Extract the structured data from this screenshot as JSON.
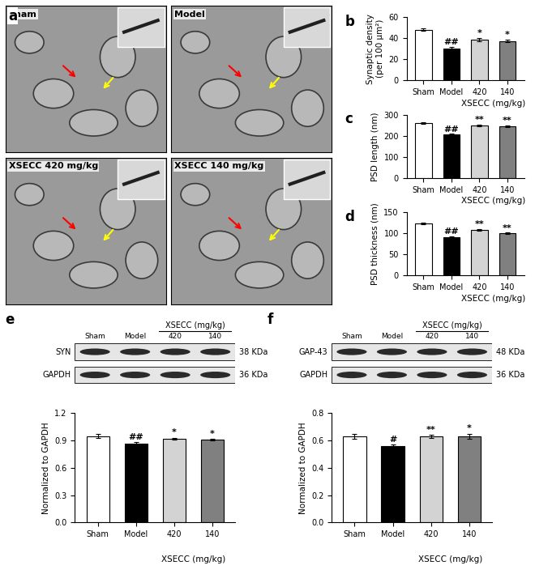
{
  "micrographs": {
    "panel": "a",
    "labels": [
      "Sham",
      "Model",
      "XSECC 420 mg/kg",
      "XSECC 140 mg/kg"
    ]
  },
  "blots": [
    {
      "panel": "e",
      "header": "XSECC (mg/kg)",
      "lanes": [
        "Sham",
        "Model",
        "420",
        "140"
      ],
      "rows": [
        {
          "protein": "SYN",
          "size": "38 KDa"
        },
        {
          "protein": "GAPDH",
          "size": "36 KDa"
        }
      ]
    },
    {
      "panel": "f",
      "header": "XSECC (mg/kg)",
      "lanes": [
        "Sham",
        "Model",
        "420",
        "140"
      ],
      "rows": [
        {
          "protein": "GAP-43",
          "size": "48 KDa"
        },
        {
          "protein": "GAPDH",
          "size": "36 KDa"
        }
      ]
    }
  ],
  "chart_data": [
    {
      "panel": "b",
      "type": "bar",
      "y_label": "Synaptic density\n(per 100 μm²)",
      "x_label": "XSECC (mg/kg)",
      "categories": [
        "Sham",
        "Model",
        "420",
        "140"
      ],
      "values": [
        48,
        30,
        38.5,
        37.5
      ],
      "errors": [
        1.2,
        2,
        1.5,
        1.5
      ],
      "significance": [
        null,
        "##",
        "*",
        "*"
      ],
      "colors": [
        "#ffffff",
        "#000000",
        "#d3d3d3",
        "#808080"
      ],
      "ylim": [
        0,
        60
      ],
      "yticks": [
        0,
        20,
        40,
        60
      ]
    },
    {
      "panel": "c",
      "type": "bar",
      "y_label": "PSD length (nm)",
      "x_label": "XSECC (mg/kg)",
      "categories": [
        "Sham",
        "Model",
        "420",
        "140"
      ],
      "values": [
        260,
        205,
        250,
        247
      ],
      "errors": [
        3,
        4,
        4,
        4
      ],
      "significance": [
        null,
        "##",
        "**",
        "**"
      ],
      "colors": [
        "#ffffff",
        "#000000",
        "#d3d3d3",
        "#808080"
      ],
      "ylim": [
        0,
        300
      ],
      "yticks": [
        0,
        100,
        200,
        300
      ]
    },
    {
      "panel": "d",
      "type": "bar",
      "y_label": "PSD thickness (nm)",
      "x_label": "XSECC (mg/kg)",
      "categories": [
        "Sham",
        "Model",
        "420",
        "140"
      ],
      "values": [
        123,
        91,
        109,
        100
      ],
      "errors": [
        2,
        2,
        2,
        2
      ],
      "significance": [
        null,
        "##",
        "**",
        "**"
      ],
      "colors": [
        "#ffffff",
        "#000000",
        "#d3d3d3",
        "#808080"
      ],
      "ylim": [
        0,
        150
      ],
      "yticks": [
        0,
        50,
        100,
        150
      ]
    },
    {
      "panel": "e",
      "type": "bar",
      "y_label": "Normalized to GAPDH",
      "x_label": "XSECC (mg/kg)",
      "categories": [
        "Sham",
        "Model",
        "420",
        "140"
      ],
      "values": [
        0.95,
        0.87,
        0.92,
        0.91
      ],
      "errors": [
        0.02,
        0.01,
        0.01,
        0.01
      ],
      "significance": [
        null,
        "##",
        "*",
        "*"
      ],
      "colors": [
        "#ffffff",
        "#000000",
        "#d3d3d3",
        "#808080"
      ],
      "ylim": [
        0,
        1.2
      ],
      "yticks": [
        0.0,
        0.3,
        0.6,
        0.9,
        1.2
      ]
    },
    {
      "panel": "f",
      "type": "bar",
      "y_label": "Normalized to GAPDH",
      "x_label": "XSECC (mg/kg)",
      "categories": [
        "Sham",
        "Model",
        "420",
        "140"
      ],
      "values": [
        0.63,
        0.56,
        0.63,
        0.63
      ],
      "errors": [
        0.02,
        0.01,
        0.01,
        0.02
      ],
      "significance": [
        null,
        "#",
        "**",
        "*"
      ],
      "colors": [
        "#ffffff",
        "#000000",
        "#d3d3d3",
        "#808080"
      ],
      "ylim": [
        0,
        0.8
      ],
      "yticks": [
        0.0,
        0.2,
        0.4,
        0.6,
        0.8
      ]
    }
  ]
}
